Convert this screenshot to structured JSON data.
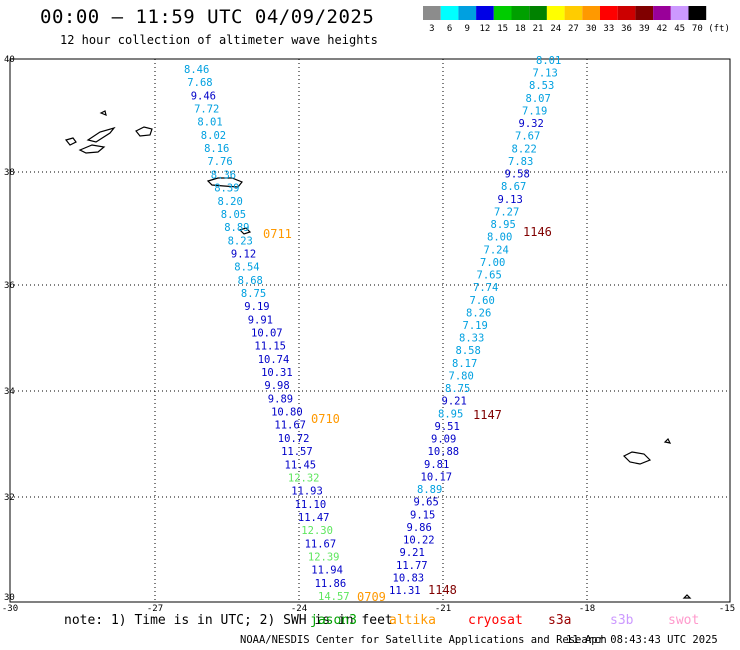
{
  "title": "00:00 – 11:59 UTC 04/09/2025",
  "subtitle": "12 hour collection of altimeter wave heights",
  "colorbar": {
    "unit": "(ft)",
    "bins": [
      {
        "label": "3",
        "color": "#8c8c8c"
      },
      {
        "label": "6",
        "color": "#00ffff"
      },
      {
        "label": "9",
        "color": "#00a0e0"
      },
      {
        "label": "12",
        "color": "#0000e6"
      },
      {
        "label": "15",
        "color": "#00cc00"
      },
      {
        "label": "18",
        "color": "#00a000"
      },
      {
        "label": "21",
        "color": "#008200"
      },
      {
        "label": "24",
        "color": "#ffff00"
      },
      {
        "label": "27",
        "color": "#ffcc00"
      },
      {
        "label": "30",
        "color": "#ff9900"
      },
      {
        "label": "33",
        "color": "#ff0000"
      },
      {
        "label": "36",
        "color": "#cc0000"
      },
      {
        "label": "39",
        "color": "#800000"
      },
      {
        "label": "42",
        "color": "#990099"
      },
      {
        "label": "45",
        "color": "#cc99ff"
      },
      {
        "label": "70",
        "color": "#000000"
      }
    ]
  },
  "axes": {
    "lat_labels": [
      "40",
      "38",
      "36",
      "34",
      "32",
      "30"
    ],
    "lon_labels": [
      "-30",
      "-27",
      "-24",
      "-21",
      "-18",
      "-15"
    ]
  },
  "footnote": "note: 1) Time is in UTC; 2) SWH is in feet",
  "satellites": [
    {
      "name": "jason3",
      "color": "#00a000"
    },
    {
      "name": "altika",
      "color": "#ff9900"
    },
    {
      "name": "cryosat",
      "color": "#ff0000"
    },
    {
      "name": "s3a",
      "color": "#990000"
    },
    {
      "name": "s3b",
      "color": "#cc99ff"
    },
    {
      "name": "swot",
      "color": "#ff99cc"
    }
  ],
  "colors": {
    "cyan": "#00a0e0",
    "navy": "#0000c8",
    "green": "#5ee65e",
    "orange": "#ff9900",
    "maroon": "#800000"
  },
  "track_labels": [
    "0711",
    "0710",
    "0709",
    "1146",
    "1147",
    "1148"
  ],
  "track_west": {
    "values": [
      "8.46",
      "7.68",
      "9.46",
      "7.72",
      "8.01",
      "8.02",
      "8.16",
      "7.76",
      "8.36",
      "8.39",
      "8.20",
      "8.05",
      "8.89",
      "8.23",
      "9.12",
      "8.54",
      "8.68",
      "8.75",
      "9.19",
      "9.91",
      "10.07",
      "11.15",
      "10.74",
      "10.31",
      "9.98",
      "9.89",
      "10.80",
      "11.67",
      "10.72",
      "11.57",
      "11.45",
      "12.32",
      "11.93",
      "11.10",
      "11.47",
      "12.30",
      "11.67",
      "12.39",
      "11.94",
      "11.86",
      "14.57"
    ],
    "colors": [
      "cyan",
      "cyan",
      "navy",
      "cyan",
      "cyan",
      "cyan",
      "cyan",
      "cyan",
      "cyan",
      "cyan",
      "cyan",
      "cyan",
      "cyan",
      "cyan",
      "navy",
      "cyan",
      "cyan",
      "cyan",
      "navy",
      "navy",
      "navy",
      "navy",
      "navy",
      "navy",
      "navy",
      "navy",
      "navy",
      "navy",
      "navy",
      "navy",
      "navy",
      "green",
      "navy",
      "navy",
      "navy",
      "green",
      "navy",
      "green",
      "navy",
      "navy",
      "green"
    ]
  },
  "track_east": {
    "values": [
      "8.01",
      "7.13",
      "8.53",
      "8.07",
      "7.19",
      "9.32",
      "7.67",
      "8.22",
      "7.83",
      "9.58",
      "8.67",
      "9.13",
      "7.27",
      "8.95",
      "8.00",
      "7.24",
      "7.00",
      "7.65",
      "7.74",
      "7.60",
      "8.26",
      "7.19",
      "8.33",
      "8.58",
      "8.17",
      "7.80",
      "8.75",
      "9.21",
      "8.95",
      "9.51",
      "9.09",
      "10.88",
      "9.81",
      "10.17",
      "8.89",
      "9.65",
      "9.15",
      "9.86",
      "10.22",
      "9.21",
      "11.77",
      "10.83",
      "11.31"
    ],
    "colors": [
      "cyan",
      "cyan",
      "cyan",
      "cyan",
      "cyan",
      "navy",
      "cyan",
      "cyan",
      "cyan",
      "navy",
      "cyan",
      "navy",
      "cyan",
      "cyan",
      "cyan",
      "cyan",
      "cyan",
      "cyan",
      "cyan",
      "cyan",
      "cyan",
      "cyan",
      "cyan",
      "cyan",
      "cyan",
      "cyan",
      "cyan",
      "navy",
      "cyan",
      "navy",
      "navy",
      "navy",
      "navy",
      "navy",
      "cyan",
      "navy",
      "navy",
      "navy",
      "navy",
      "navy",
      "navy",
      "navy",
      "navy"
    ]
  },
  "credit": "NOAA/NESDIS Center for Satellite Applications and Research",
  "timestamp": "11 Apr 08:43:43 UTC 2025"
}
